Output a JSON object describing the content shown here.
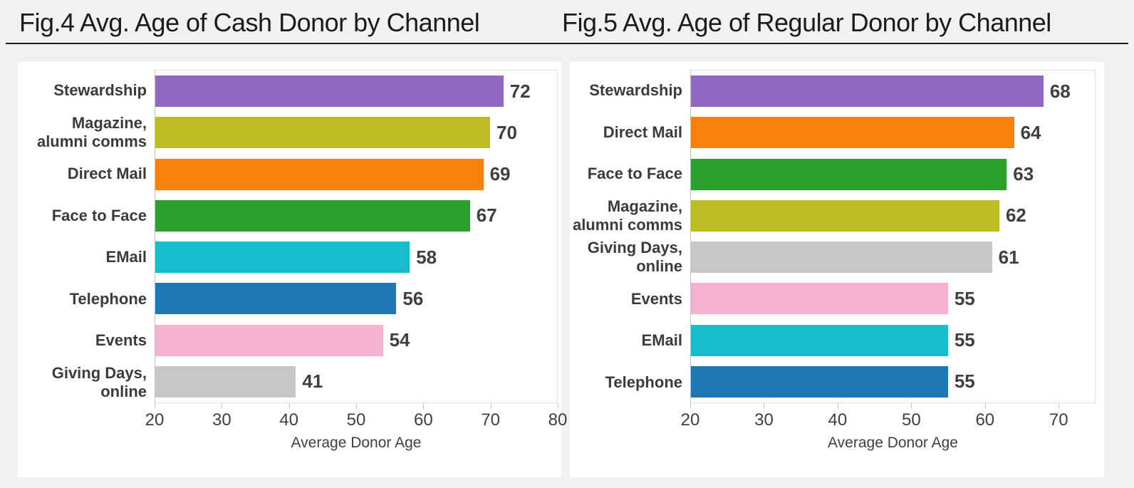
{
  "page": {
    "background": "#f2f1f0",
    "card_background": "#ffffff",
    "title_color": "#1b1b1b",
    "title_rule_color": "#1c1c1c",
    "axis_line_color": "#c4c4c4",
    "plot_border_color": "#e2e2e2",
    "text_color": "#3f3f3f",
    "label_color": "#3b3b3b"
  },
  "chart_data": [
    {
      "type": "bar",
      "orientation": "horizontal",
      "title": "Fig.4 Avg. Age of Cash Donor by Channel",
      "xlabel": "Average Donor Age",
      "xlim": [
        20,
        80
      ],
      "xticks": [
        20,
        30,
        40,
        50,
        60,
        70,
        80
      ],
      "grid": false,
      "legend": "none",
      "value_labels_shown": true,
      "categories": [
        "Stewardship",
        "Magazine,\nalumni comms",
        "Direct Mail",
        "Face to Face",
        "EMail",
        "Telephone",
        "Events",
        "Giving Days,\nonline"
      ],
      "values": [
        72,
        70,
        69,
        67,
        58,
        56,
        54,
        41
      ],
      "bar_colors": [
        "#9168c2",
        "#bcbd22",
        "#fb810e",
        "#2ca02c",
        "#17bccd",
        "#1f77b4",
        "#f4b1d1",
        "#c7c7c7"
      ]
    },
    {
      "type": "bar",
      "orientation": "horizontal",
      "title": "Fig.5 Avg. Age of Regular Donor by Channel",
      "xlabel": "Average Donor Age",
      "xlim": [
        20,
        75
      ],
      "xticks": [
        20,
        30,
        40,
        50,
        60,
        70
      ],
      "grid": false,
      "legend": "none",
      "value_labels_shown": true,
      "categories": [
        "Stewardship",
        "Direct Mail",
        "Face to Face",
        "Magazine,\nalumni comms",
        "Giving Days,\nonline",
        "Events",
        "EMail",
        "Telephone"
      ],
      "values": [
        68,
        64,
        63,
        62,
        61,
        55,
        55,
        55
      ],
      "bar_colors": [
        "#9168c2",
        "#fb810e",
        "#2ca02c",
        "#bcbd22",
        "#c7c7c7",
        "#f4b1d1",
        "#17bccd",
        "#1f77b4"
      ]
    }
  ]
}
